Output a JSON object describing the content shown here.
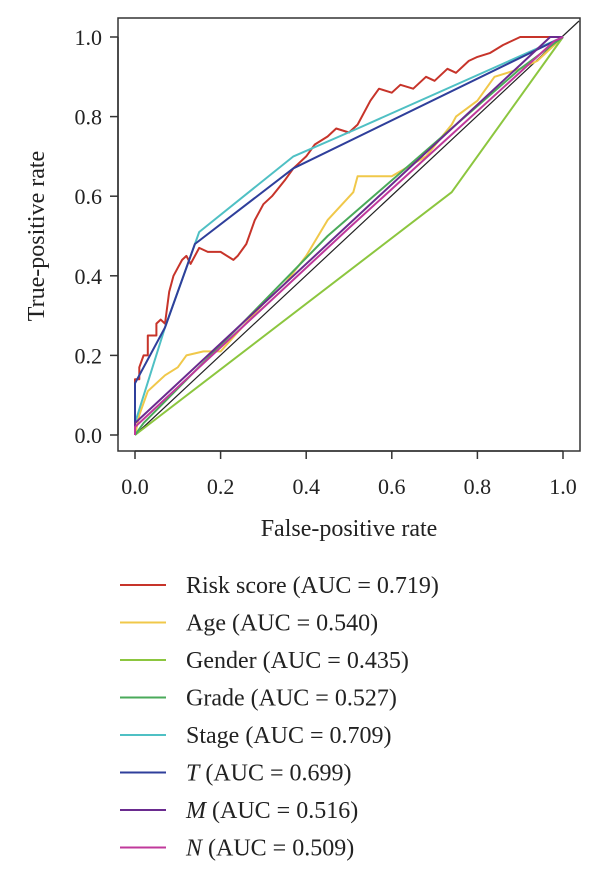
{
  "colors": {
    "risk_score": "#c7342a",
    "age": "#f0c84a",
    "gender": "#8cc63f",
    "grade": "#4aaa5a",
    "stage": "#4fc0c4",
    "t": "#2f3f9b",
    "m": "#6a2b8f",
    "n": "#c0399b",
    "diagonal": "#222222",
    "axis": "#333333"
  },
  "chart_data": {
    "type": "line",
    "title": "",
    "xlabel": "False-positive rate",
    "ylabel": "True-positive rate",
    "xlim": [
      0,
      1
    ],
    "ylim": [
      0,
      1
    ],
    "xticks": [
      "0.0",
      "0.2",
      "0.4",
      "0.6",
      "0.8",
      "1.0"
    ],
    "yticks": [
      "0.0",
      "0.2",
      "0.4",
      "0.6",
      "0.8",
      "1.0"
    ],
    "grid": false,
    "legend_position": "below",
    "reference_line": [
      [
        0,
        0
      ],
      [
        1,
        1
      ]
    ],
    "series": [
      {
        "key": "risk_score",
        "name": "Risk score",
        "auc_text": "(AUC = 0.719)",
        "italic": false,
        "points": [
          [
            0,
            0
          ],
          [
            0,
            0.14
          ],
          [
            0.01,
            0.14
          ],
          [
            0.01,
            0.17
          ],
          [
            0.02,
            0.2
          ],
          [
            0.03,
            0.2
          ],
          [
            0.03,
            0.25
          ],
          [
            0.05,
            0.25
          ],
          [
            0.05,
            0.28
          ],
          [
            0.06,
            0.29
          ],
          [
            0.07,
            0.28
          ],
          [
            0.08,
            0.36
          ],
          [
            0.09,
            0.4
          ],
          [
            0.1,
            0.42
          ],
          [
            0.11,
            0.44
          ],
          [
            0.12,
            0.45
          ],
          [
            0.13,
            0.43
          ],
          [
            0.15,
            0.47
          ],
          [
            0.17,
            0.46
          ],
          [
            0.2,
            0.46
          ],
          [
            0.23,
            0.44
          ],
          [
            0.24,
            0.45
          ],
          [
            0.26,
            0.48
          ],
          [
            0.28,
            0.54
          ],
          [
            0.3,
            0.58
          ],
          [
            0.32,
            0.6
          ],
          [
            0.35,
            0.64
          ],
          [
            0.37,
            0.67
          ],
          [
            0.4,
            0.7
          ],
          [
            0.42,
            0.73
          ],
          [
            0.45,
            0.75
          ],
          [
            0.47,
            0.77
          ],
          [
            0.5,
            0.76
          ],
          [
            0.52,
            0.78
          ],
          [
            0.55,
            0.84
          ],
          [
            0.57,
            0.87
          ],
          [
            0.6,
            0.86
          ],
          [
            0.62,
            0.88
          ],
          [
            0.65,
            0.87
          ],
          [
            0.68,
            0.9
          ],
          [
            0.7,
            0.89
          ],
          [
            0.73,
            0.92
          ],
          [
            0.75,
            0.91
          ],
          [
            0.78,
            0.94
          ],
          [
            0.8,
            0.95
          ],
          [
            0.83,
            0.96
          ],
          [
            0.86,
            0.98
          ],
          [
            0.9,
            1.0
          ],
          [
            0.95,
            1.0
          ],
          [
            1,
            1
          ]
        ]
      },
      {
        "key": "age",
        "name": "Age",
        "auc_text": "(AUC = 0.540)",
        "italic": false,
        "points": [
          [
            0,
            0
          ],
          [
            0.01,
            0.05
          ],
          [
            0.03,
            0.11
          ],
          [
            0.07,
            0.15
          ],
          [
            0.1,
            0.17
          ],
          [
            0.12,
            0.2
          ],
          [
            0.16,
            0.21
          ],
          [
            0.2,
            0.21
          ],
          [
            0.25,
            0.27
          ],
          [
            0.3,
            0.33
          ],
          [
            0.35,
            0.38
          ],
          [
            0.4,
            0.45
          ],
          [
            0.45,
            0.54
          ],
          [
            0.51,
            0.61
          ],
          [
            0.52,
            0.65
          ],
          [
            0.6,
            0.65
          ],
          [
            0.68,
            0.7
          ],
          [
            0.74,
            0.78
          ],
          [
            0.75,
            0.8
          ],
          [
            0.8,
            0.84
          ],
          [
            0.84,
            0.9
          ],
          [
            0.9,
            0.92
          ],
          [
            0.94,
            0.94
          ],
          [
            1,
            1
          ]
        ]
      },
      {
        "key": "gender",
        "name": "Gender",
        "auc_text": "(AUC = 0.435)",
        "italic": false,
        "points": [
          [
            0,
            0
          ],
          [
            0.74,
            0.61
          ],
          [
            1,
            1
          ]
        ]
      },
      {
        "key": "grade",
        "name": "Grade",
        "auc_text": "(AUC = 0.527)",
        "italic": false,
        "points": [
          [
            0,
            0
          ],
          [
            0.02,
            0.03
          ],
          [
            0.25,
            0.28
          ],
          [
            0.45,
            0.5
          ],
          [
            0.75,
            0.78
          ],
          [
            0.9,
            0.92
          ],
          [
            1,
            1
          ]
        ]
      },
      {
        "key": "stage",
        "name": "Stage",
        "auc_text": "(AUC = 0.709)",
        "italic": false,
        "points": [
          [
            0,
            0
          ],
          [
            0,
            0.03
          ],
          [
            0.07,
            0.27
          ],
          [
            0.15,
            0.51
          ],
          [
            0.37,
            0.7
          ],
          [
            0.52,
            0.77
          ],
          [
            1,
            1
          ]
        ]
      },
      {
        "key": "t",
        "name": "T",
        "auc_text": "(AUC = 0.699)",
        "italic": true,
        "points": [
          [
            0,
            0
          ],
          [
            0,
            0.13
          ],
          [
            0.07,
            0.27
          ],
          [
            0.14,
            0.48
          ],
          [
            0.37,
            0.67
          ],
          [
            1,
            1
          ]
        ]
      },
      {
        "key": "m",
        "name": "M",
        "auc_text": "(AUC = 0.516)",
        "italic": true,
        "points": [
          [
            0,
            0
          ],
          [
            0,
            0.03
          ],
          [
            0.97,
            1.0
          ],
          [
            1,
            1
          ]
        ]
      },
      {
        "key": "n",
        "name": "N",
        "auc_text": "(AUC = 0.509)",
        "italic": true,
        "points": [
          [
            0,
            0
          ],
          [
            0,
            0.02
          ],
          [
            0.5,
            0.52
          ],
          [
            0.98,
            0.99
          ],
          [
            1,
            1
          ]
        ]
      }
    ]
  }
}
